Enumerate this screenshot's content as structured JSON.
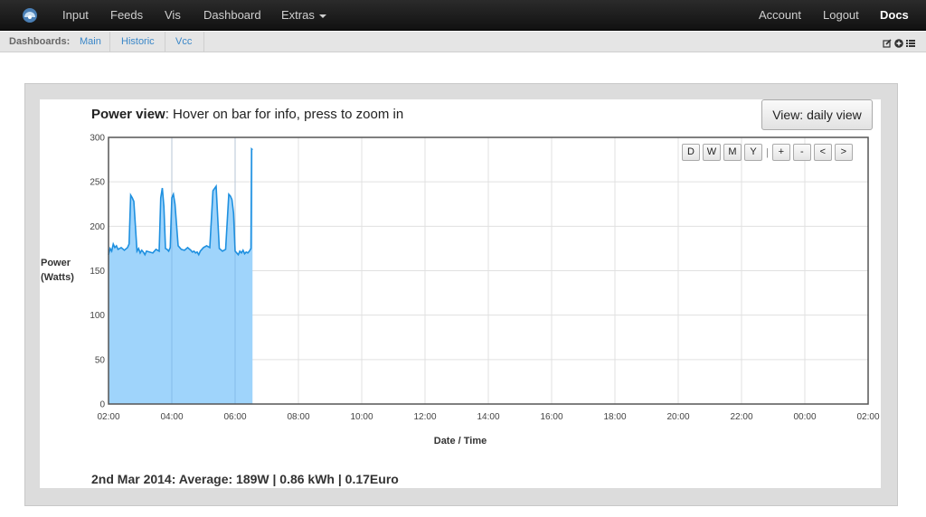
{
  "navbar": {
    "items": [
      "Input",
      "Feeds",
      "Vis",
      "Dashboard",
      "Extras"
    ],
    "right_items": [
      "Account",
      "Logout",
      "Docs"
    ],
    "logo_icon": "emoncms-logo-icon"
  },
  "subnav": {
    "label": "Dashboards:",
    "links": [
      "Main",
      "Historic",
      "Vcc"
    ],
    "icons": [
      "edit-icon",
      "plus-circle-icon",
      "list-icon"
    ]
  },
  "panel": {
    "title_bold": "Power view",
    "title_rest": ": Hover on bar for info, press to zoom in",
    "view_button": "View: daily view",
    "zoom_buttons": [
      "D",
      "W",
      "M",
      "Y",
      "+",
      "-",
      "<",
      ">"
    ],
    "zoom_separator": "|",
    "summary": "2nd Mar 2014: Average: 189W | 0.86 kWh | 0.17Euro"
  },
  "chart_data": {
    "type": "area",
    "ylabel_line1": "Power",
    "ylabel_line2": "(Watts)",
    "xlabel": "Date / Time",
    "ylim": [
      0,
      300
    ],
    "y_ticks": [
      0,
      50,
      100,
      150,
      200,
      250,
      300
    ],
    "x_ticks": [
      "02:00",
      "04:00",
      "06:00",
      "08:00",
      "10:00",
      "12:00",
      "14:00",
      "16:00",
      "18:00",
      "20:00",
      "22:00",
      "00:00",
      "02:00"
    ],
    "x_range_hours": [
      0,
      24
    ],
    "grid": true,
    "fill_color": "#9fd4fb",
    "line_color": "#1e90e0",
    "series": [
      {
        "x_hours": [
          0,
          0.05,
          0.1,
          0.15,
          0.2,
          0.25,
          0.3,
          0.4,
          0.5,
          0.6,
          0.65,
          0.7,
          0.75,
          0.8,
          0.85,
          0.9,
          0.95,
          1.0,
          1.05,
          1.1,
          1.15,
          1.2,
          1.3,
          1.4,
          1.5,
          1.6,
          1.65,
          1.7,
          1.75,
          1.8,
          1.85,
          1.9,
          1.95,
          2.0,
          2.05,
          2.1,
          2.2,
          2.3,
          2.4,
          2.5,
          2.6,
          2.65,
          2.7,
          2.75,
          2.8,
          2.85,
          2.9,
          3.0,
          3.1,
          3.2,
          3.3,
          3.4,
          3.5,
          3.6,
          3.7,
          3.8,
          3.85,
          3.9,
          3.95,
          4.0,
          4.05,
          4.1,
          4.15,
          4.2,
          4.25,
          4.3,
          4.35,
          4.4,
          4.45,
          4.5,
          4.52,
          4.55
        ],
        "values": [
          168,
          175,
          172,
          180,
          176,
          178,
          174,
          176,
          173,
          176,
          180,
          235,
          232,
          228,
          200,
          172,
          175,
          170,
          173,
          171,
          168,
          172,
          171,
          170,
          174,
          172,
          232,
          243,
          222,
          175,
          174,
          172,
          176,
          232,
          236,
          225,
          178,
          174,
          173,
          176,
          173,
          171,
          172,
          170,
          171,
          168,
          172,
          176,
          178,
          176,
          240,
          245,
          175,
          172,
          174,
          236,
          234,
          230,
          215,
          172,
          170,
          168,
          172,
          170,
          173,
          169,
          171,
          170,
          172,
          175,
          287,
          286
        ]
      }
    ]
  }
}
